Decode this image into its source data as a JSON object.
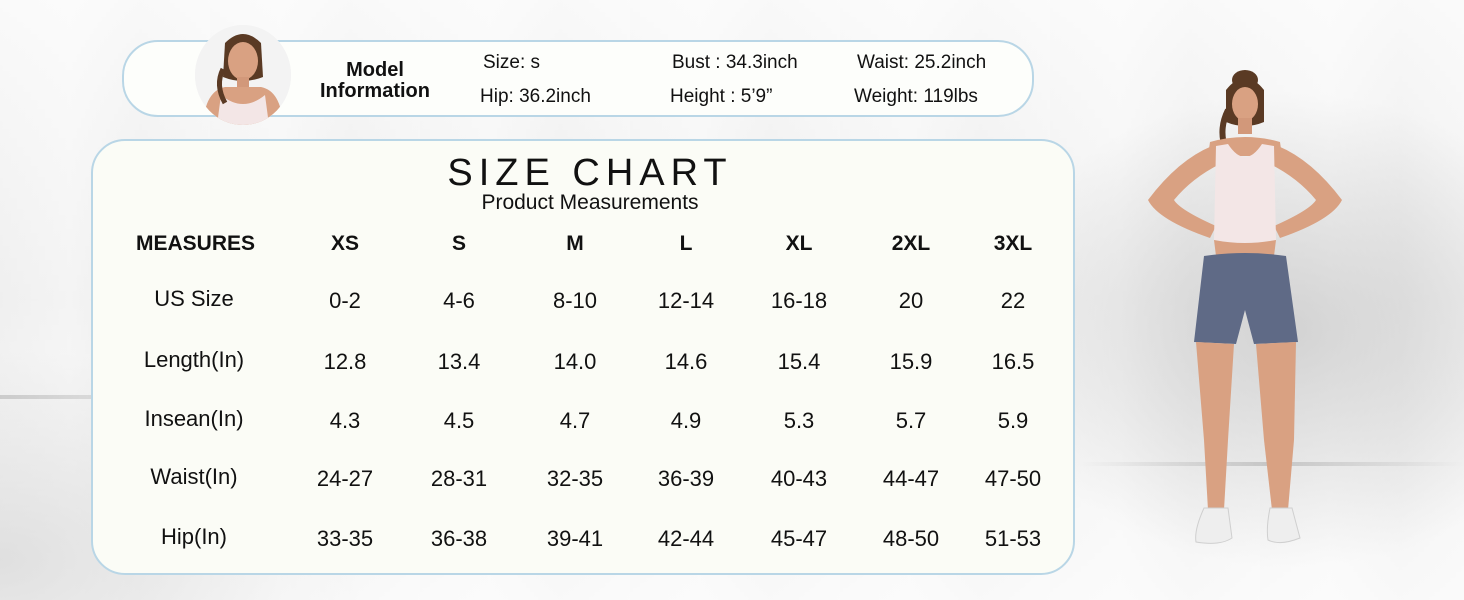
{
  "model_info": {
    "title_line1": "Model",
    "title_line2": "Information",
    "size": "Size: s",
    "bust": "Bust :  34.3inch",
    "waist": "Waist:  25.2inch",
    "hip": "Hip:  36.2inch",
    "height": "Height : 5’9”",
    "weight": "Weight:  119lbs"
  },
  "size_chart": {
    "title": "SIZE CHART",
    "subtitle": "Product Measurements",
    "measures_header": "MEASURES",
    "sizes": [
      "XS",
      "S",
      "M",
      "L",
      "XL",
      "2XL",
      "3XL"
    ],
    "rows": [
      {
        "label": "US Size",
        "values": [
          "0-2",
          "4-6",
          "8-10",
          "12-14",
          "16-18",
          "20",
          "22"
        ]
      },
      {
        "label": "Length(In)",
        "values": [
          "12.8",
          "13.4",
          "14.0",
          "14.6",
          "15.4",
          "15.9",
          "16.5"
        ]
      },
      {
        "label": "Insean(In)",
        "values": [
          "4.3",
          "4.5",
          "4.7",
          "4.9",
          "5.3",
          "5.7",
          "5.9"
        ]
      },
      {
        "label": "Waist(In)",
        "values": [
          "24-27",
          "28-31",
          "32-35",
          "36-39",
          "40-43",
          "44-47",
          "47-50"
        ]
      },
      {
        "label": "Hip(In)",
        "values": [
          "33-35",
          "36-38",
          "39-41",
          "42-44",
          "45-47",
          "48-50",
          "51-53"
        ]
      }
    ]
  },
  "colors": {
    "border": "#b9d6e6",
    "panel": "#fbfcf6",
    "shorts": "#5f6a86",
    "top": "#f3e6e6",
    "skin": "#d9a182"
  }
}
